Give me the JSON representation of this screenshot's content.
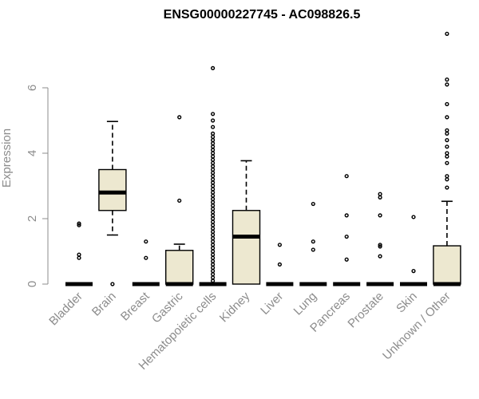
{
  "chart_data": {
    "type": "boxplot",
    "title": "ENSG00000227745 - AC098826.5",
    "xlabel": "",
    "ylabel": "Expression",
    "ylim": [
      0,
      7.8
    ],
    "yticks": [
      0,
      2,
      4,
      6
    ],
    "grid": false,
    "box_fill": "#ede8d0",
    "categories": [
      "Bladder",
      "Brain",
      "Breast",
      "Gastric",
      "Hematopoietic cells",
      "Kidney",
      "Liver",
      "Lung",
      "Pancreas",
      "Prostate",
      "Skin",
      "Unknown / Other"
    ],
    "boxes": [
      {
        "label": "Bladder",
        "q1": 0,
        "median": 0,
        "q3": 0,
        "whisker_low": 0,
        "whisker_high": 0,
        "outliers": [
          0.8,
          0.9,
          1.8,
          1.85
        ]
      },
      {
        "label": "Brain",
        "q1": 2.25,
        "median": 2.8,
        "q3": 3.5,
        "whisker_low": 1.5,
        "whisker_high": 4.97,
        "outliers": [
          0
        ]
      },
      {
        "label": "Breast",
        "q1": 0,
        "median": 0,
        "q3": 0,
        "whisker_low": 0,
        "whisker_high": 0,
        "outliers": [
          0.8,
          1.3
        ]
      },
      {
        "label": "Gastric",
        "q1": 0,
        "median": 0,
        "q3": 1.03,
        "whisker_low": 0,
        "whisker_high": 1.22,
        "outliers": [
          2.55,
          5.1
        ]
      },
      {
        "label": "Hematopoietic cells",
        "q1": 0,
        "median": 0,
        "q3": 0,
        "whisker_low": 0,
        "whisker_high": 0,
        "outliers": [
          0.1,
          0.2,
          0.3,
          0.4,
          0.5,
          0.6,
          0.7,
          0.8,
          0.9,
          1.0,
          1.1,
          1.2,
          1.3,
          1.4,
          1.5,
          1.6,
          1.7,
          1.8,
          1.9,
          2.0,
          2.1,
          2.2,
          2.3,
          2.4,
          2.5,
          2.6,
          2.7,
          2.8,
          2.9,
          3.0,
          3.1,
          3.2,
          3.3,
          3.4,
          3.5,
          3.6,
          3.7,
          3.8,
          3.9,
          4.0,
          4.1,
          4.2,
          4.3,
          4.4,
          4.5,
          4.6,
          4.8,
          5.0,
          5.2,
          6.6
        ]
      },
      {
        "label": "Kidney",
        "q1": 0,
        "median": 1.45,
        "q3": 2.25,
        "whisker_low": 0,
        "whisker_high": 3.77,
        "outliers": []
      },
      {
        "label": "Liver",
        "q1": 0,
        "median": 0,
        "q3": 0,
        "whisker_low": 0,
        "whisker_high": 0,
        "outliers": [
          0.6,
          1.2
        ]
      },
      {
        "label": "Lung",
        "q1": 0,
        "median": 0,
        "q3": 0,
        "whisker_low": 0,
        "whisker_high": 0,
        "outliers": [
          1.05,
          1.3,
          2.45
        ]
      },
      {
        "label": "Pancreas",
        "q1": 0,
        "median": 0,
        "q3": 0,
        "whisker_low": 0,
        "whisker_high": 0,
        "outliers": [
          0.75,
          1.45,
          2.1,
          3.3
        ]
      },
      {
        "label": "Prostate",
        "q1": 0,
        "median": 0,
        "q3": 0,
        "whisker_low": 0,
        "whisker_high": 0,
        "outliers": [
          0.85,
          1.15,
          1.2,
          2.1,
          2.65,
          2.75
        ]
      },
      {
        "label": "Skin",
        "q1": 0,
        "median": 0,
        "q3": 0,
        "whisker_low": 0,
        "whisker_high": 0,
        "outliers": [
          0.4,
          2.05
        ]
      },
      {
        "label": "Unknown / Other",
        "q1": 0,
        "median": 0,
        "q3": 1.17,
        "whisker_low": 0,
        "whisker_high": 2.53,
        "outliers": [
          2.95,
          3.2,
          3.3,
          3.7,
          3.9,
          4.0,
          4.2,
          4.4,
          4.6,
          4.7,
          5.1,
          5.5,
          6.1,
          6.25,
          7.65
        ]
      }
    ]
  }
}
